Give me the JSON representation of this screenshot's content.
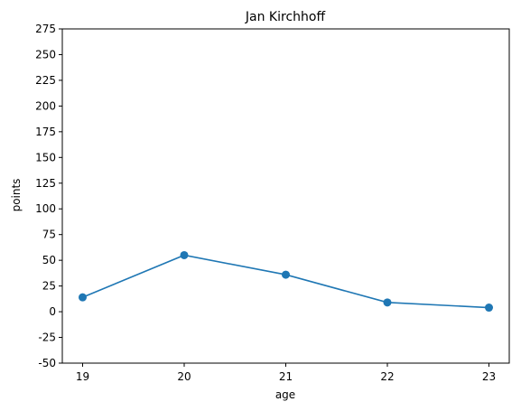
{
  "chart_data": {
    "type": "line",
    "title": "Jan Kirchhoff",
    "xlabel": "age",
    "ylabel": "points",
    "x": [
      19,
      20,
      21,
      22,
      23
    ],
    "series": [
      {
        "values": [
          14,
          55,
          36,
          9,
          4
        ],
        "color": "#1f77b4",
        "marker": "circle"
      }
    ],
    "xlim": [
      18.8,
      23.2
    ],
    "ylim": [
      -50,
      275
    ],
    "xticks": [
      "19",
      "20",
      "21",
      "22",
      "23"
    ],
    "yticks": [
      "-50",
      "-25",
      "0",
      "25",
      "50",
      "75",
      "100",
      "125",
      "150",
      "175",
      "200",
      "225",
      "250",
      "275"
    ],
    "grid": false,
    "legend": "none"
  }
}
